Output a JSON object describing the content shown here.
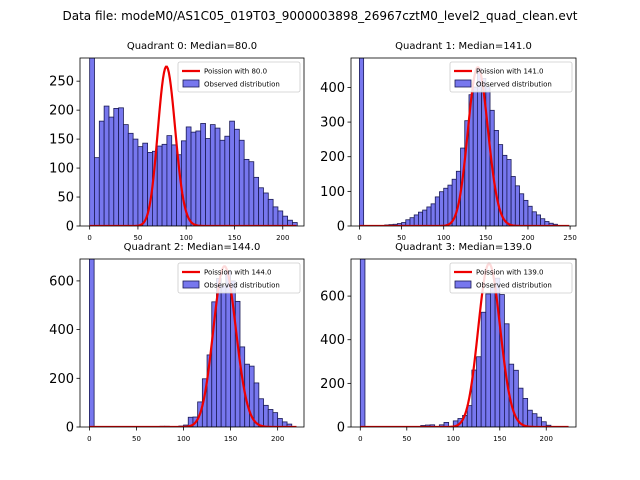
{
  "figure_title": "Data file: modeM0/AS1C05_019T03_9000003898_26967cztM0_level2_quad_clean.evt",
  "chart_data": [
    {
      "type": "bar",
      "title": "Quadrant 0: Median=80.0",
      "xlim": [
        -10,
        222
      ],
      "ylim": [
        0,
        290
      ],
      "xticks": [
        0,
        50,
        100,
        150,
        200
      ],
      "yticks": [
        0,
        50,
        100,
        150,
        200,
        250
      ],
      "bin_width": 5,
      "bins": [
        [
          0,
          290
        ],
        [
          5,
          118
        ],
        [
          10,
          181
        ],
        [
          15,
          207
        ],
        [
          20,
          188
        ],
        [
          25,
          203
        ],
        [
          30,
          204
        ],
        [
          35,
          175
        ],
        [
          40,
          160
        ],
        [
          45,
          150
        ],
        [
          50,
          137
        ],
        [
          55,
          143
        ],
        [
          60,
          127
        ],
        [
          65,
          129
        ],
        [
          70,
          138
        ],
        [
          75,
          141
        ],
        [
          80,
          156
        ],
        [
          85,
          140
        ],
        [
          90,
          123
        ],
        [
          95,
          147
        ],
        [
          100,
          171
        ],
        [
          105,
          162
        ],
        [
          110,
          164
        ],
        [
          115,
          177
        ],
        [
          120,
          151
        ],
        [
          125,
          175
        ],
        [
          130,
          169
        ],
        [
          135,
          148
        ],
        [
          140,
          155
        ],
        [
          145,
          181
        ],
        [
          150,
          167
        ],
        [
          155,
          148
        ],
        [
          160,
          115
        ],
        [
          165,
          111
        ],
        [
          170,
          84
        ],
        [
          175,
          66
        ],
        [
          180,
          57
        ],
        [
          185,
          46
        ],
        [
          190,
          33
        ],
        [
          195,
          26
        ],
        [
          200,
          17
        ],
        [
          205,
          10
        ],
        [
          210,
          6
        ]
      ],
      "fit": {
        "lambda": 80.0,
        "peak": 275
      },
      "legend": [
        "Poission with 80.0",
        "Observed distribution"
      ]
    },
    {
      "type": "bar",
      "title": "Quadrant 1: Median=141.0",
      "xlim": [
        -10,
        257
      ],
      "ylim": [
        0,
        485
      ],
      "xticks": [
        0,
        50,
        100,
        150,
        200,
        250
      ],
      "yticks": [
        0,
        100,
        200,
        300,
        400
      ],
      "bin_width": 5,
      "bins": [
        [
          0,
          485
        ],
        [
          30,
          3
        ],
        [
          35,
          4
        ],
        [
          40,
          5
        ],
        [
          45,
          7
        ],
        [
          50,
          10
        ],
        [
          55,
          18
        ],
        [
          60,
          24
        ],
        [
          65,
          32
        ],
        [
          70,
          40
        ],
        [
          75,
          46
        ],
        [
          80,
          55
        ],
        [
          85,
          64
        ],
        [
          90,
          84
        ],
        [
          95,
          99
        ],
        [
          100,
          109
        ],
        [
          105,
          118
        ],
        [
          110,
          135
        ],
        [
          115,
          158
        ],
        [
          120,
          225
        ],
        [
          125,
          304
        ],
        [
          130,
          379
        ],
        [
          135,
          401
        ],
        [
          140,
          454
        ],
        [
          145,
          426
        ],
        [
          150,
          403
        ],
        [
          155,
          334
        ],
        [
          160,
          276
        ],
        [
          165,
          235
        ],
        [
          170,
          204
        ],
        [
          175,
          192
        ],
        [
          180,
          143
        ],
        [
          185,
          116
        ],
        [
          190,
          93
        ],
        [
          195,
          74
        ],
        [
          200,
          57
        ],
        [
          205,
          41
        ],
        [
          210,
          32
        ],
        [
          215,
          21
        ],
        [
          220,
          13
        ],
        [
          225,
          8
        ],
        [
          230,
          5
        ]
      ],
      "fit": {
        "lambda": 141.0,
        "peak": 458
      },
      "legend": [
        "Poission with 141.0",
        "Observed distribution"
      ]
    },
    {
      "type": "bar",
      "title": "Quadrant 2: Median=144.0",
      "xlim": [
        -10,
        228
      ],
      "ylim": [
        0,
        690
      ],
      "xticks": [
        0,
        50,
        100,
        150,
        200
      ],
      "yticks": [
        0,
        200,
        400,
        600
      ],
      "bin_width": 5,
      "bins": [
        [
          0,
          690
        ],
        [
          30,
          2
        ],
        [
          70,
          2
        ],
        [
          75,
          3
        ],
        [
          80,
          3
        ],
        [
          95,
          4
        ],
        [
          100,
          8
        ],
        [
          105,
          40
        ],
        [
          110,
          41
        ],
        [
          115,
          103
        ],
        [
          120,
          198
        ],
        [
          125,
          296
        ],
        [
          130,
          514
        ],
        [
          135,
          610
        ],
        [
          140,
          580
        ],
        [
          145,
          642
        ],
        [
          150,
          600
        ],
        [
          155,
          516
        ],
        [
          160,
          329
        ],
        [
          165,
          258
        ],
        [
          170,
          250
        ],
        [
          175,
          181
        ],
        [
          180,
          116
        ],
        [
          185,
          89
        ],
        [
          190,
          72
        ],
        [
          195,
          59
        ],
        [
          200,
          35
        ],
        [
          205,
          21
        ],
        [
          210,
          12
        ]
      ],
      "fit": {
        "lambda": 144.0,
        "peak": 660
      },
      "legend": [
        "Poission with 144.0",
        "Observed distribution"
      ]
    },
    {
      "type": "bar",
      "title": "Quadrant 3: Median=139.0",
      "xlim": [
        -10,
        232
      ],
      "ylim": [
        0,
        770
      ],
      "xticks": [
        0,
        50,
        100,
        150,
        200
      ],
      "yticks": [
        0,
        200,
        400,
        600
      ],
      "bin_width": 5,
      "bins": [
        [
          0,
          770
        ],
        [
          65,
          7
        ],
        [
          70,
          9
        ],
        [
          75,
          10
        ],
        [
          85,
          10
        ],
        [
          90,
          21
        ],
        [
          100,
          28
        ],
        [
          105,
          39
        ],
        [
          110,
          53
        ],
        [
          115,
          98
        ],
        [
          120,
          261
        ],
        [
          125,
          322
        ],
        [
          130,
          526
        ],
        [
          135,
          610
        ],
        [
          140,
          640
        ],
        [
          145,
          682
        ],
        [
          150,
          607
        ],
        [
          155,
          473
        ],
        [
          160,
          288
        ],
        [
          165,
          260
        ],
        [
          170,
          178
        ],
        [
          175,
          131
        ],
        [
          180,
          77
        ],
        [
          185,
          61
        ],
        [
          190,
          45
        ],
        [
          195,
          24
        ],
        [
          200,
          8
        ]
      ],
      "fit": {
        "lambda": 139.0,
        "peak": 748
      },
      "legend": [
        "Poission with 139.0",
        "Observed distribution"
      ]
    }
  ],
  "colors": {
    "bar_fill": "#7777ee",
    "bar_edge": "#1a1a55",
    "fit_line": "#ee0000",
    "axis": "#000000"
  }
}
